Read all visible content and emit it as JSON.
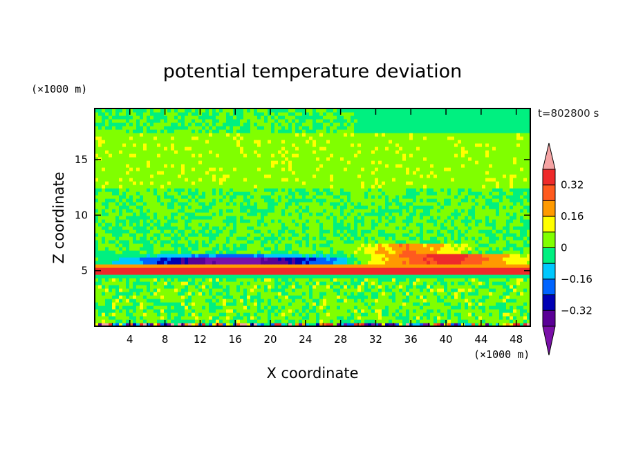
{
  "chart_data": {
    "type": "heatmap",
    "title": "potential temperature deviation",
    "xlabel": "X coordinate",
    "ylabel": "Z coordinate",
    "x_unit": "(×1000 m)",
    "y_unit": "(×1000 m)",
    "time_label": "t=802800 s",
    "xlim": [
      0,
      49.6
    ],
    "ylim": [
      0,
      19.6
    ],
    "x_ticks": [
      4,
      8,
      12,
      16,
      20,
      24,
      28,
      32,
      36,
      40,
      44,
      48
    ],
    "y_ticks": [
      5,
      10,
      15
    ],
    "colorbar": {
      "levels": [
        -0.4,
        -0.32,
        -0.24,
        -0.16,
        -0.08,
        0,
        0.08,
        0.16,
        0.24,
        0.32,
        0.4
      ],
      "tick_labels": [
        "0.32",
        "0.16",
        "0",
        "−0.16",
        "−0.32"
      ],
      "tick_values": [
        0.32,
        0.16,
        0,
        -0.16,
        -0.32
      ],
      "colors_top_to_bottom": [
        "#f5a3a3",
        "#ee2a2a",
        "#ff5a1e",
        "#ff9a00",
        "#ffff00",
        "#80ff00",
        "#00f080",
        "#00c8ff",
        "#0064ff",
        "#0000b4",
        "#5a0096",
        "#7a10a8"
      ],
      "extend": "both"
    },
    "features": [
      {
        "label": "negative deviation layer",
        "x": [
          1,
          30
        ],
        "z": [
          4.6,
          6.2
        ],
        "value": -0.36
      },
      {
        "label": "positive deviation layer",
        "x": [
          27,
          49.6
        ],
        "z": [
          4.6,
          6.4
        ],
        "value": 0.34
      },
      {
        "label": "warm band",
        "x": [
          0,
          49.6
        ],
        "z": [
          4.6,
          5.3
        ],
        "value": 0.3
      },
      {
        "label": "upper weak positive band",
        "x": [
          0,
          49.6
        ],
        "z": [
          12.5,
          17.5
        ],
        "value": 0.05
      }
    ]
  }
}
